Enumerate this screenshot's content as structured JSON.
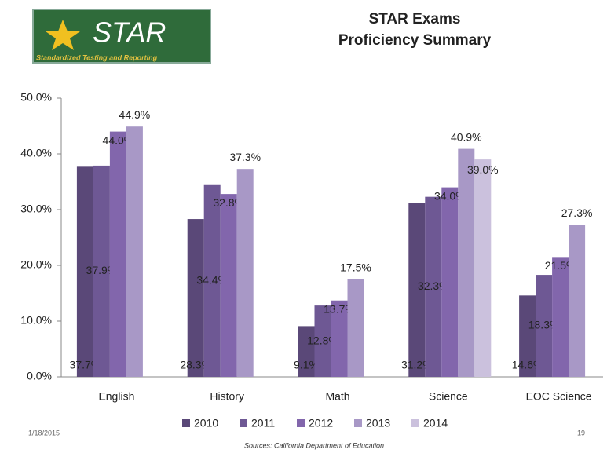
{
  "logo": {
    "title": "STAR",
    "subtitle": "Standardized Testing and Reporting"
  },
  "chart_data": {
    "type": "bar",
    "title": [
      "STAR Exams",
      "Proficiency Summary"
    ],
    "categories": [
      "English",
      "History",
      "Math",
      "Science",
      "EOC Science"
    ],
    "series": [
      {
        "name": "2010",
        "color": "#5a4878",
        "values": [
          37.7,
          28.3,
          9.1,
          31.2,
          14.6
        ],
        "value_labels": [
          "37.7%",
          "28.3%",
          "9.1%",
          "31.2%",
          "14.6%"
        ]
      },
      {
        "name": "2011",
        "color": "#6e5894",
        "values": [
          37.9,
          34.4,
          12.8,
          32.3,
          18.3
        ],
        "value_labels": [
          "37.9%",
          "34.4%",
          "12.8%",
          "32.3%",
          "18.3%"
        ]
      },
      {
        "name": "2012",
        "color": "#8266ac",
        "values": [
          44.0,
          32.8,
          13.7,
          34.0,
          21.5
        ],
        "value_labels": [
          "44.0%",
          "32.8%",
          "13.7%",
          "34.0%",
          "21.5%"
        ]
      },
      {
        "name": "2013",
        "color": "#a898c6",
        "values": [
          44.9,
          37.3,
          17.5,
          40.9,
          27.3
        ],
        "value_labels": [
          "44.9%",
          "37.3%",
          "17.5%",
          "40.9%",
          "27.3%"
        ]
      },
      {
        "name": "2014",
        "color": "#cbc1dd",
        "values": [
          null,
          null,
          null,
          39.0,
          null
        ],
        "value_labels": [
          null,
          null,
          null,
          "39.0%",
          null
        ]
      }
    ],
    "ylim": [
      0,
      50
    ],
    "yticks": [
      {
        "value": 0,
        "label": "0.0%"
      },
      {
        "value": 10,
        "label": "10.0%"
      },
      {
        "value": 20,
        "label": "20.0%"
      },
      {
        "value": 30,
        "label": "30.0%"
      },
      {
        "value": 40,
        "label": "40.0%"
      },
      {
        "value": 50,
        "label": "50.0%"
      }
    ],
    "legend": "bottom"
  },
  "footer": {
    "date": "1/18/2015",
    "page": "19",
    "source": "Sources:  California Department of Education"
  }
}
